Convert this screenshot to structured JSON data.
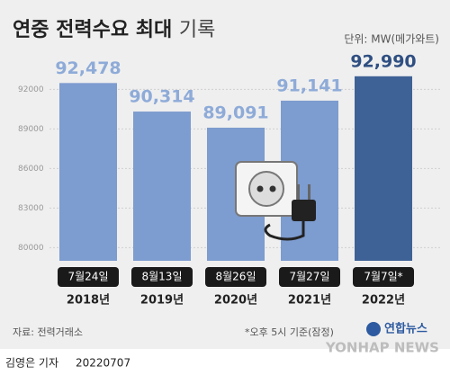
{
  "chart_data": {
    "type": "bar",
    "title": "연중 전력수요 최대",
    "title_suffix": "기록",
    "unit": "단위: MW(메가와트)",
    "categories": [
      "2018년",
      "2019년",
      "2020년",
      "2021년",
      "2022년"
    ],
    "dates": [
      "7월24일",
      "8월13일",
      "8월26일",
      "7월27일",
      "7월7일*"
    ],
    "values": [
      92478,
      90314,
      89091,
      91141,
      92990
    ],
    "value_labels": [
      "92,478",
      "90,314",
      "89,091",
      "91,141",
      "92,990"
    ],
    "colors": [
      "#7d9ccf",
      "#7d9ccf",
      "#7d9ccf",
      "#7d9ccf",
      "#3f6296"
    ],
    "label_colors": [
      "#8eabd8",
      "#8eabd8",
      "#8eabd8",
      "#8eabd8",
      "#2f4f82"
    ],
    "ylim": [
      79000,
      94000
    ],
    "yticks": [
      80000,
      83000,
      86000,
      89000,
      92000
    ],
    "grid": true,
    "source": "자료: 전력거래소",
    "note": "*오후 5시 기준(잠정)",
    "reporter": "김영은 기자",
    "date": "20220707",
    "logo": "연합뉴스",
    "logo_en": "YONHAP NEWS"
  }
}
